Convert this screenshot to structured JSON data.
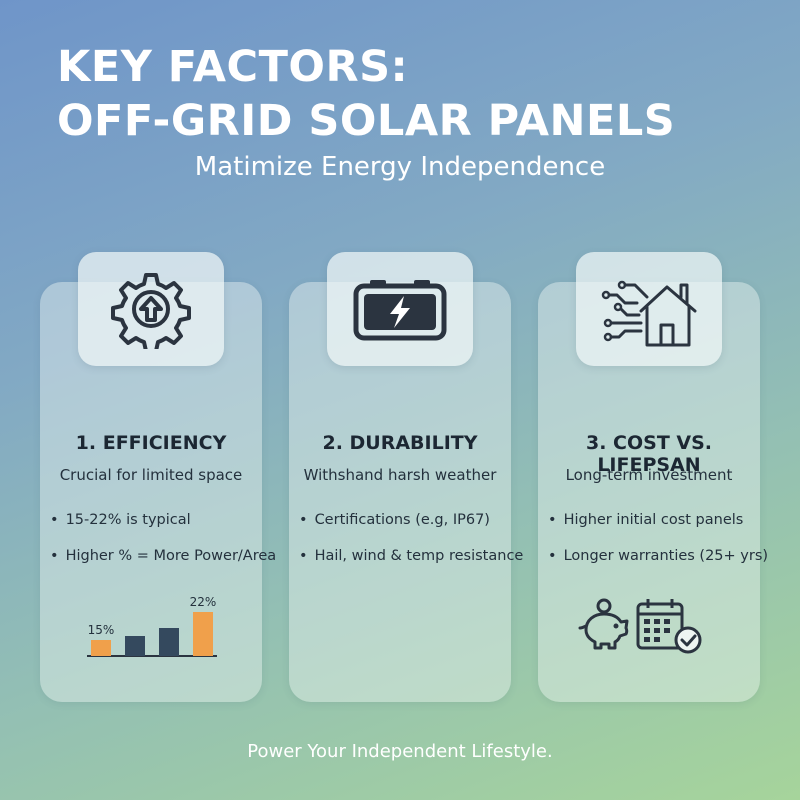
{
  "header": {
    "title_line1": "KEY FACTORS:",
    "title_line2": "OFF-GRID SOLAR PANELS",
    "subtitle": "Matimize Energy Independence"
  },
  "cards": [
    {
      "icon": "gear-arrow-up-icon",
      "title": "1. EFFICIENCY",
      "subtitle": "Crucial for limited space",
      "bullets": [
        "15-22% is typical",
        "Higher % = More Power/Area"
      ]
    },
    {
      "icon": "battery-charging-icon",
      "title": "2. DURABILITY",
      "subtitle": "Withshand harsh weather",
      "bullets": [
        "Certifications (e.g, IP67)",
        "Hail, wind & temp resistance"
      ]
    },
    {
      "icon": "smart-home-icon",
      "title": "3. COST VS. LIFEPSAN",
      "subtitle": "Long-term investment",
      "bullets": [
        "Higher initial cost panels",
        "Longer warranties (25+ yrs)"
      ],
      "extra_icons": [
        "piggy-bank-coin-icon",
        "calendar-check-icon"
      ]
    }
  ],
  "chart_data": {
    "type": "bar",
    "categories": [
      "",
      "",
      "",
      ""
    ],
    "values": [
      15,
      16,
      18,
      22
    ],
    "data_labels": [
      "15%",
      "",
      "",
      "22%"
    ],
    "colors": [
      "#f0a04b",
      "#34495e",
      "#34495e",
      "#f0a04b"
    ],
    "ylim": [
      13,
      22
    ]
  },
  "footer": {
    "tagline": "Power Your Independent Lifestyle."
  },
  "colors": {
    "accent_orange": "#f0a04b",
    "dark_navy": "#34495e",
    "icon_stroke": "#2b3440"
  }
}
